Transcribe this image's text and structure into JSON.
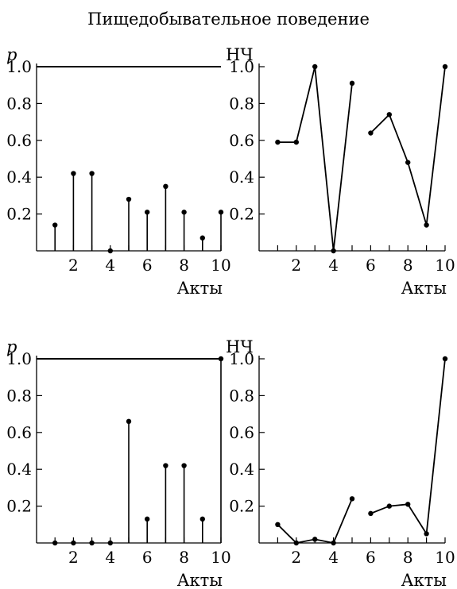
{
  "title": "Пищедобывательное поведение",
  "chart_data": [
    {
      "id": "top-left",
      "type": "stem",
      "ylabel": "p",
      "xlabel": "Акты",
      "x": [
        1,
        2,
        3,
        4,
        5,
        6,
        7,
        8,
        9,
        10
      ],
      "y": [
        0.14,
        0.42,
        0.42,
        0.0,
        0.28,
        0.21,
        0.35,
        0.21,
        0.07,
        0.21
      ],
      "xticks": [
        2,
        4,
        6,
        8,
        10
      ],
      "yticks": [
        0.2,
        0.4,
        0.6,
        0.8,
        1.0
      ],
      "xlim": [
        0,
        10
      ],
      "ylim": [
        0,
        1.0
      ],
      "reference_line": 1.0
    },
    {
      "id": "top-right",
      "type": "line",
      "ylabel": "НЧ",
      "xlabel": "Акты",
      "segments": [
        {
          "x": [
            1,
            2,
            3,
            4,
            5
          ],
          "y": [
            0.59,
            0.59,
            1.0,
            0.0,
            0.91
          ]
        },
        {
          "x": [
            6,
            7,
            8,
            9,
            10
          ],
          "y": [
            0.64,
            0.74,
            0.48,
            0.14,
            1.0
          ]
        }
      ],
      "xticks": [
        2,
        4,
        6,
        8,
        10
      ],
      "yticks": [
        0.2,
        0.4,
        0.6,
        0.8,
        1.0
      ],
      "xlim": [
        0,
        10
      ],
      "ylim": [
        0,
        1.0
      ]
    },
    {
      "id": "bottom-left",
      "type": "stem",
      "ylabel": "p",
      "xlabel": "Акты",
      "x": [
        1,
        2,
        3,
        4,
        5,
        6,
        7,
        8,
        9,
        10
      ],
      "y": [
        0.0,
        0.0,
        0.0,
        0.0,
        0.66,
        0.13,
        0.42,
        0.42,
        0.13,
        1.0
      ],
      "xticks": [
        2,
        4,
        6,
        8,
        10
      ],
      "yticks": [
        0.2,
        0.4,
        0.6,
        0.8,
        1.0
      ],
      "xlim": [
        0,
        10
      ],
      "ylim": [
        0,
        1.0
      ],
      "reference_line": 1.0
    },
    {
      "id": "bottom-right",
      "type": "line",
      "ylabel": "НЧ",
      "xlabel": "Акты",
      "segments": [
        {
          "x": [
            1,
            2,
            3,
            4,
            5
          ],
          "y": [
            0.1,
            0.0,
            0.02,
            0.0,
            0.24
          ]
        },
        {
          "x": [
            6,
            7,
            8,
            9,
            10
          ],
          "y": [
            0.16,
            0.2,
            0.21,
            0.05,
            1.0
          ]
        }
      ],
      "xticks": [
        2,
        4,
        6,
        8,
        10
      ],
      "yticks": [
        0.2,
        0.4,
        0.6,
        0.8,
        1.0
      ],
      "xlim": [
        0,
        10
      ],
      "ylim": [
        0,
        1.0
      ]
    }
  ]
}
